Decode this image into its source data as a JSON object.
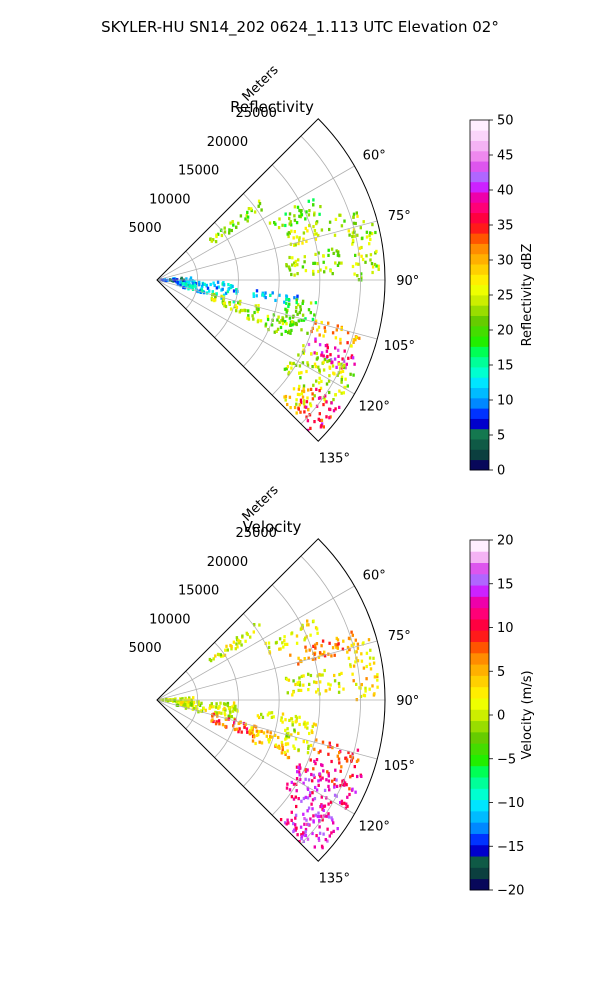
{
  "figure": {
    "title": "SKYLER-HU  SN14_202  0624_1.113 UTC Elevation 02°"
  },
  "chart_data": [
    {
      "type": "heatmap",
      "title": "Reflectivity",
      "radial_label": "Meters",
      "radial_range": [
        0,
        28000
      ],
      "radial_ticks": [
        "5000",
        "10000",
        "15000",
        "20000",
        "25000"
      ],
      "radial_tick_values": [
        5000,
        10000,
        15000,
        20000,
        25000
      ],
      "azimuth_range": [
        45,
        135
      ],
      "azimuth_ticks": [
        "60°",
        "75°",
        "90°",
        "105°",
        "120°",
        "135°"
      ],
      "azimuth_tick_values": [
        60,
        75,
        90,
        105,
        120,
        135
      ],
      "grid": true,
      "colorbar": {
        "label": "Reflectivity dBZ",
        "range": [
          0,
          50
        ],
        "ticks": [
          "0",
          "5",
          "10",
          "15",
          "20",
          "25",
          "30",
          "35",
          "40",
          "45",
          "50"
        ],
        "tick_values": [
          0,
          5,
          10,
          15,
          20,
          25,
          30,
          35,
          40,
          45,
          50
        ],
        "colors": [
          "#08085a",
          "#0b3f3f",
          "#0f5a46",
          "#14784f",
          "#0000cc",
          "#0033ff",
          "#0088ff",
          "#00bbff",
          "#00e5ff",
          "#00ffd0",
          "#00ff99",
          "#00ff55",
          "#22ee00",
          "#44dd00",
          "#66cc00",
          "#99dd00",
          "#ccee00",
          "#eeff00",
          "#ffee00",
          "#ffd000",
          "#ffb000",
          "#ff8c00",
          "#ff5500",
          "#ff1a1a",
          "#ff0040",
          "#ff0077",
          "#ee00aa",
          "#cc22ff",
          "#b066ff",
          "#dd55ee",
          "#ee88ee",
          "#f4b3f4",
          "#fad5fa",
          "#ffeeff"
        ]
      },
      "echoes": [
        {
          "az": [
            52,
            57
          ],
          "r": [
            8000,
            16000
          ],
          "v": 22
        },
        {
          "az": [
            62,
            68
          ],
          "r": [
            15000,
            22000
          ],
          "v": 21
        },
        {
          "az": [
            70,
            76
          ],
          "r": [
            17000,
            26000
          ],
          "v": 24
        },
        {
          "az": [
            74,
            90
          ],
          "r": [
            24000,
            27500
          ],
          "v": 23
        },
        {
          "az": [
            80,
            88
          ],
          "r": [
            16000,
            23000
          ],
          "v": 22
        },
        {
          "az": [
            86,
            95
          ],
          "r": [
            0,
            4500
          ],
          "v": 8
        },
        {
          "az": [
            92,
            106
          ],
          "r": [
            2500,
            10000
          ],
          "v": 12
        },
        {
          "az": [
            96,
            100
          ],
          "r": [
            12000,
            18000
          ],
          "v": 12
        },
        {
          "az": [
            98,
            110
          ],
          "r": [
            16000,
            20000
          ],
          "v": 20
        },
        {
          "az": [
            104,
            112
          ],
          "r": [
            7000,
            13000
          ],
          "v": 24
        },
        {
          "az": [
            106,
            114
          ],
          "r": [
            12000,
            18000
          ],
          "v": 22
        },
        {
          "az": [
            104,
            110
          ],
          "r": [
            20000,
            26000
          ],
          "v": 30
        },
        {
          "az": [
            110,
            116
          ],
          "r": [
            20000,
            27000
          ],
          "v": 40
        },
        {
          "az": [
            114,
            126
          ],
          "r": [
            19000,
            27000
          ],
          "v": 24
        },
        {
          "az": [
            124,
            135
          ],
          "r": [
            23000,
            27500
          ],
          "v": 36
        },
        {
          "az": [
            126,
            134
          ],
          "r": [
            21000,
            25000
          ],
          "v": 27
        }
      ]
    },
    {
      "type": "heatmap",
      "title": "Velocity",
      "radial_label": "Meters",
      "radial_range": [
        0,
        28000
      ],
      "radial_ticks": [
        "5000",
        "10000",
        "15000",
        "20000",
        "25000"
      ],
      "radial_tick_values": [
        5000,
        10000,
        15000,
        20000,
        25000
      ],
      "azimuth_range": [
        45,
        135
      ],
      "azimuth_ticks": [
        "60°",
        "75°",
        "90°",
        "105°",
        "120°",
        "135°"
      ],
      "azimuth_tick_values": [
        60,
        75,
        90,
        105,
        120,
        135
      ],
      "grid": true,
      "colorbar": {
        "label": "Velocity (m/s)",
        "range": [
          -20,
          20
        ],
        "ticks": [
          "−20",
          "−15",
          "−10",
          "−5",
          "0",
          "5",
          "10",
          "15",
          "20"
        ],
        "tick_values": [
          -20,
          -15,
          -10,
          -5,
          0,
          5,
          10,
          15,
          20
        ],
        "colors": [
          "#08085a",
          "#0b3f3f",
          "#0f5a46",
          "#0000cc",
          "#0033ff",
          "#0088ff",
          "#00bbff",
          "#00e5ff",
          "#00ffd0",
          "#00ff99",
          "#00ff55",
          "#22ee00",
          "#44dd00",
          "#66cc00",
          "#99dd00",
          "#ccee00",
          "#eeff00",
          "#ffee00",
          "#ffd000",
          "#ffb000",
          "#ff8c00",
          "#ff5500",
          "#ff1a1a",
          "#ff0040",
          "#ff0077",
          "#ee00aa",
          "#cc22ff",
          "#b066ff",
          "#dd55ee",
          "#f4b3f4",
          "#ffeeff"
        ]
      },
      "echoes": [
        {
          "az": [
            52,
            57
          ],
          "r": [
            8000,
            16000
          ],
          "v": 1
        },
        {
          "az": [
            62,
            68
          ],
          "r": [
            15000,
            22000
          ],
          "v": 2
        },
        {
          "az": [
            70,
            76
          ],
          "r": [
            17000,
            26000
          ],
          "v": 6
        },
        {
          "az": [
            74,
            90
          ],
          "r": [
            24000,
            27500
          ],
          "v": 3
        },
        {
          "az": [
            80,
            88
          ],
          "r": [
            16000,
            23000
          ],
          "v": 1
        },
        {
          "az": [
            86,
            95
          ],
          "r": [
            0,
            4500
          ],
          "v": 0
        },
        {
          "az": [
            92,
            106
          ],
          "r": [
            2500,
            10000
          ],
          "v": 1
        },
        {
          "az": [
            96,
            100
          ],
          "r": [
            12000,
            18000
          ],
          "v": 2
        },
        {
          "az": [
            98,
            110
          ],
          "r": [
            16000,
            20000
          ],
          "v": 1
        },
        {
          "az": [
            104,
            112
          ],
          "r": [
            7000,
            13000
          ],
          "v": 8
        },
        {
          "az": [
            106,
            114
          ],
          "r": [
            12000,
            18000
          ],
          "v": 4
        },
        {
          "az": [
            104,
            110
          ],
          "r": [
            20000,
            26000
          ],
          "v": 9
        },
        {
          "az": [
            110,
            116
          ],
          "r": [
            20000,
            27000
          ],
          "v": 10
        },
        {
          "az": [
            114,
            126
          ],
          "r": [
            19000,
            27000
          ],
          "v": 13
        },
        {
          "az": [
            124,
            135
          ],
          "r": [
            23000,
            27500
          ],
          "v": 14
        },
        {
          "az": [
            126,
            134
          ],
          "r": [
            21000,
            25000
          ],
          "v": 13
        }
      ]
    }
  ]
}
